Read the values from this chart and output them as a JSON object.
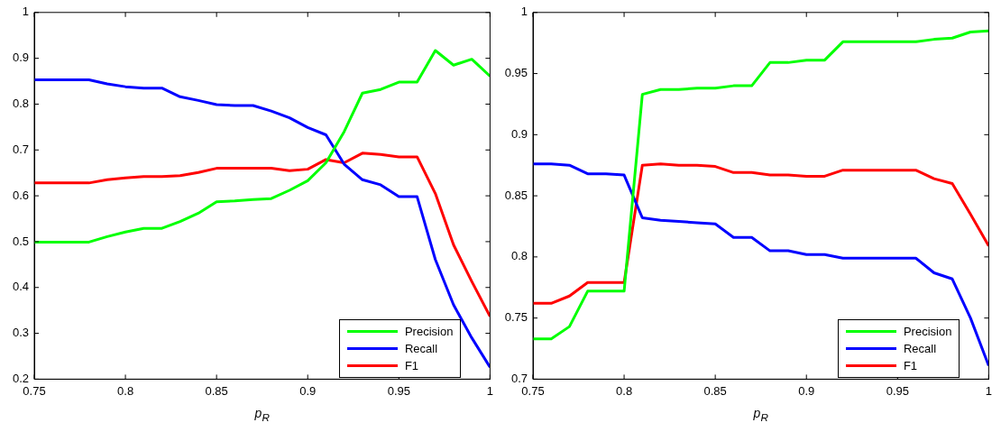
{
  "chart_data": [
    {
      "type": "line",
      "xlabel": "p$_{R}$",
      "x": [
        0.75,
        0.76,
        0.77,
        0.78,
        0.79,
        0.8,
        0.81,
        0.82,
        0.83,
        0.84,
        0.85,
        0.86,
        0.87,
        0.88,
        0.89,
        0.9,
        0.91,
        0.92,
        0.93,
        0.94,
        0.95,
        0.96,
        0.97,
        0.98,
        0.99,
        1.0
      ],
      "xlim": [
        0.75,
        1
      ],
      "xticks": [
        0.75,
        0.8,
        0.85,
        0.9,
        0.95,
        1
      ],
      "ylim": [
        0.2,
        1
      ],
      "yticks": [
        0.2,
        0.3,
        0.4,
        0.5,
        0.6,
        0.7,
        0.8,
        0.9,
        1
      ],
      "grid": false,
      "legend": "bottom right",
      "marker": "none",
      "line_style": "solid",
      "series": [
        {
          "name": "Precision",
          "color": "#00ff00",
          "values": [
            0.499,
            0.499,
            0.499,
            0.499,
            0.511,
            0.521,
            0.529,
            0.529,
            0.544,
            0.562,
            0.587,
            0.589,
            0.592,
            0.594,
            0.612,
            0.633,
            0.672,
            0.74,
            0.824,
            0.832,
            0.848,
            0.848,
            0.917,
            0.885,
            0.898,
            0.861
          ]
        },
        {
          "name": "Recall",
          "color": "#0000ff",
          "values": [
            0.853,
            0.853,
            0.853,
            0.853,
            0.844,
            0.838,
            0.835,
            0.835,
            0.816,
            0.808,
            0.799,
            0.797,
            0.797,
            0.785,
            0.77,
            0.749,
            0.733,
            0.669,
            0.635,
            0.624,
            0.598,
            0.598,
            0.461,
            0.362,
            0.29,
            0.226
          ]
        },
        {
          "name": "F1",
          "color": "#ff0000",
          "values": [
            0.628,
            0.628,
            0.628,
            0.628,
            0.635,
            0.639,
            0.642,
            0.642,
            0.644,
            0.651,
            0.66,
            0.66,
            0.66,
            0.66,
            0.655,
            0.658,
            0.679,
            0.672,
            0.693,
            0.69,
            0.685,
            0.685,
            0.605,
            0.493,
            0.413,
            0.337
          ]
        }
      ]
    },
    {
      "type": "line",
      "xlabel": "p$_{R}$",
      "x": [
        0.75,
        0.76,
        0.77,
        0.78,
        0.79,
        0.8,
        0.81,
        0.82,
        0.83,
        0.84,
        0.85,
        0.86,
        0.87,
        0.88,
        0.89,
        0.9,
        0.91,
        0.92,
        0.93,
        0.94,
        0.95,
        0.96,
        0.97,
        0.98,
        0.99,
        1.0
      ],
      "xlim": [
        0.75,
        1
      ],
      "xticks": [
        0.75,
        0.8,
        0.85,
        0.9,
        0.95,
        1
      ],
      "ylim": [
        0.7,
        1
      ],
      "yticks": [
        0.7,
        0.75,
        0.8,
        0.85,
        0.9,
        0.95,
        1
      ],
      "grid": false,
      "legend": "bottom right",
      "marker": "none",
      "line_style": "solid",
      "series": [
        {
          "name": "Precision",
          "color": "#00ff00",
          "values": [
            0.733,
            0.733,
            0.743,
            0.772,
            0.772,
            0.772,
            0.933,
            0.937,
            0.937,
            0.938,
            0.938,
            0.94,
            0.94,
            0.959,
            0.959,
            0.961,
            0.961,
            0.976,
            0.976,
            0.976,
            0.976,
            0.976,
            0.978,
            0.979,
            0.984,
            0.985
          ]
        },
        {
          "name": "Recall",
          "color": "#0000ff",
          "values": [
            0.876,
            0.876,
            0.875,
            0.868,
            0.868,
            0.867,
            0.832,
            0.83,
            0.829,
            0.828,
            0.827,
            0.816,
            0.816,
            0.805,
            0.805,
            0.802,
            0.802,
            0.799,
            0.799,
            0.799,
            0.799,
            0.799,
            0.787,
            0.782,
            0.75,
            0.711
          ]
        },
        {
          "name": "F1",
          "color": "#ff0000",
          "values": [
            0.762,
            0.762,
            0.768,
            0.779,
            0.779,
            0.779,
            0.875,
            0.876,
            0.875,
            0.875,
            0.874,
            0.869,
            0.869,
            0.867,
            0.867,
            0.866,
            0.866,
            0.871,
            0.871,
            0.871,
            0.871,
            0.871,
            0.864,
            0.86,
            0.835,
            0.809
          ]
        }
      ]
    }
  ]
}
